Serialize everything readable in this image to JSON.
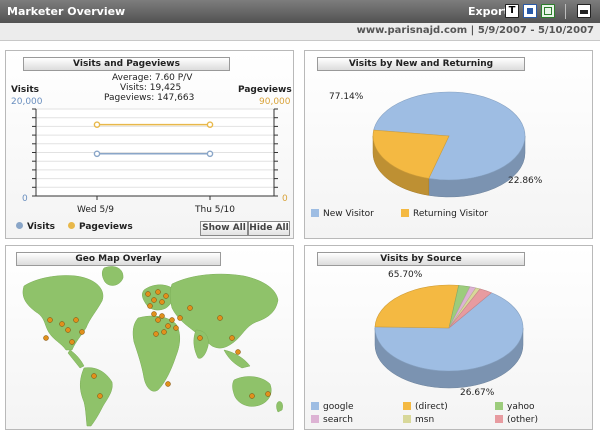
{
  "header": {
    "title": "Marketer Overview",
    "export_label": "Export",
    "export_icons": [
      "text-export-icon",
      "csv-export-icon",
      "excel-export-icon"
    ],
    "print_icon": "printer-icon"
  },
  "subheader": {
    "site": "www.parisnajd.com",
    "date_range": "5/9/2007 - 5/10/2007"
  },
  "visits_pageviews": {
    "title": "Visits and Pageviews",
    "left_axis_label": "Visits",
    "left_axis_max": "20,000",
    "left_axis_min": "0",
    "right_axis_label": "Pageviews",
    "right_axis_max": "90,000",
    "right_axis_min": "0",
    "summary_average": "Average: 7.60 P/V",
    "summary_visits": "Visits: 19,425",
    "summary_pageviews": "Pageviews: 147,663",
    "legend_visits": "Visits",
    "legend_pageviews": "Pageviews",
    "show_all_label": "Show All",
    "hide_all_label": "Hide All",
    "colors": {
      "visits": "#8aa6c8",
      "pageviews": "#e8b84a"
    }
  },
  "geo_map": {
    "title": "Geo Map Overlay",
    "colors": {
      "water": "#ffffff",
      "land": "#8fc26a",
      "marker": "#e0901c"
    }
  },
  "new_returning": {
    "title": "Visits by New and Returning",
    "label_new": "77.14%",
    "label_returning": "22.86%",
    "legend": [
      {
        "name": "New Visitor",
        "color": "#9ebde3"
      },
      {
        "name": "Returning Visitor",
        "color": "#f4b942"
      }
    ]
  },
  "visits_source": {
    "title": "Visits by Source",
    "label_google": "65.70%",
    "label_direct": "26.67%",
    "legend": [
      {
        "name": "google",
        "color": "#9ebde3"
      },
      {
        "name": "(direct)",
        "color": "#f4b942"
      },
      {
        "name": "yahoo",
        "color": "#9ccc7c"
      },
      {
        "name": "search",
        "color": "#ddb3d4"
      },
      {
        "name": "msn",
        "color": "#d8d89a"
      },
      {
        "name": "(other)",
        "color": "#e79ba0"
      }
    ]
  },
  "chart_data": [
    {
      "type": "line",
      "title": "Visits and Pageviews",
      "x": [
        "Wed 5/9",
        "Thu 5/10"
      ],
      "series": [
        {
          "name": "Visits",
          "axis": "left",
          "values": [
            9700,
            9700
          ]
        },
        {
          "name": "Pageviews",
          "axis": "right",
          "values": [
            73800,
            73800
          ]
        }
      ],
      "ylim_left": [
        0,
        20000
      ],
      "ylim_right": [
        0,
        90000
      ],
      "grid": true,
      "legend": "bottom-left"
    },
    {
      "type": "pie",
      "title": "Visits by New and Returning",
      "labels": [
        "New Visitor",
        "Returning Visitor"
      ],
      "values": [
        77.14,
        22.86
      ],
      "legend": "bottom"
    },
    {
      "type": "pie",
      "title": "Visits by Source",
      "labels": [
        "google",
        "(direct)",
        "yahoo",
        "search",
        "msn",
        "(other)"
      ],
      "values": [
        65.7,
        26.67,
        2.5,
        1.3,
        1.0,
        2.83
      ],
      "legend": "bottom"
    }
  ]
}
